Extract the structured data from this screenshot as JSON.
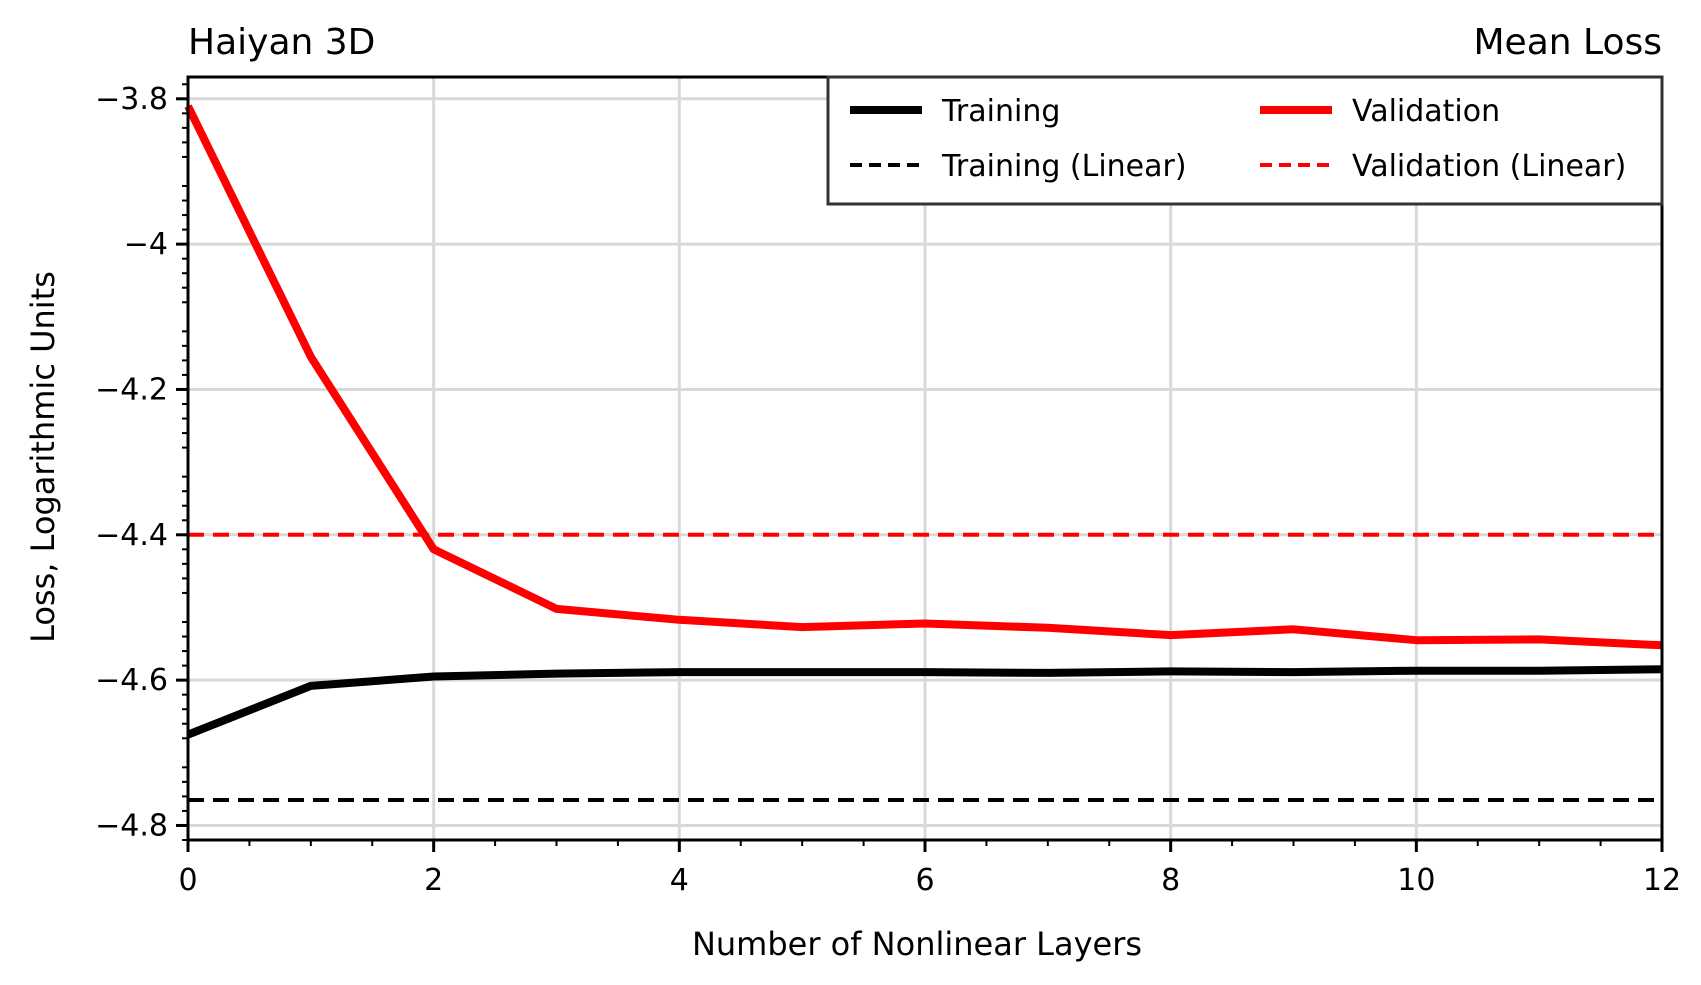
{
  "chart_data": {
    "type": "line",
    "title_left": "Haiyan 3D",
    "title_right": "Mean Loss",
    "xlabel": "Number of Nonlinear Layers",
    "ylabel": "Loss, Logarithmic Units",
    "xlim": [
      0,
      12
    ],
    "ylim": [
      -4.82,
      -3.77
    ],
    "xticks": [
      0,
      2,
      4,
      6,
      8,
      10,
      12
    ],
    "xtick_labels": [
      "0",
      "2",
      "4",
      "6",
      "8",
      "10",
      "12"
    ],
    "yticks": [
      -3.8,
      -4.0,
      -4.2,
      -4.4,
      -4.6,
      -4.8
    ],
    "ytick_labels": [
      "−3.8",
      "−4",
      "−4.2",
      "−4.4",
      "−4.6",
      "−4.8"
    ],
    "grid": true,
    "legend_position": "top-right",
    "x": [
      0,
      1,
      2,
      3,
      4,
      5,
      6,
      7,
      8,
      9,
      10,
      11,
      12
    ],
    "series": [
      {
        "name": "Training",
        "style": "solid",
        "color": "#000000",
        "values": [
          -4.675,
          -4.608,
          -4.595,
          -4.591,
          -4.589,
          -4.589,
          -4.589,
          -4.59,
          -4.588,
          -4.589,
          -4.587,
          -4.587,
          -4.585
        ]
      },
      {
        "name": "Training (Linear)",
        "style": "dashed",
        "color": "#000000",
        "values": [
          -4.765,
          -4.765,
          -4.765,
          -4.765,
          -4.765,
          -4.765,
          -4.765,
          -4.765,
          -4.765,
          -4.765,
          -4.765,
          -4.765,
          -4.765
        ]
      },
      {
        "name": "Validation",
        "style": "solid",
        "color": "#ff0000",
        "values": [
          -3.81,
          -4.155,
          -4.42,
          -4.502,
          -4.517,
          -4.527,
          -4.522,
          -4.528,
          -4.538,
          -4.53,
          -4.545,
          -4.544,
          -4.552
        ]
      },
      {
        "name": "Validation (Linear)",
        "style": "dashed",
        "color": "#ff0000",
        "values": [
          -4.4,
          -4.4,
          -4.4,
          -4.4,
          -4.4,
          -4.4,
          -4.4,
          -4.4,
          -4.4,
          -4.4,
          -4.4,
          -4.4,
          -4.4
        ]
      }
    ]
  }
}
